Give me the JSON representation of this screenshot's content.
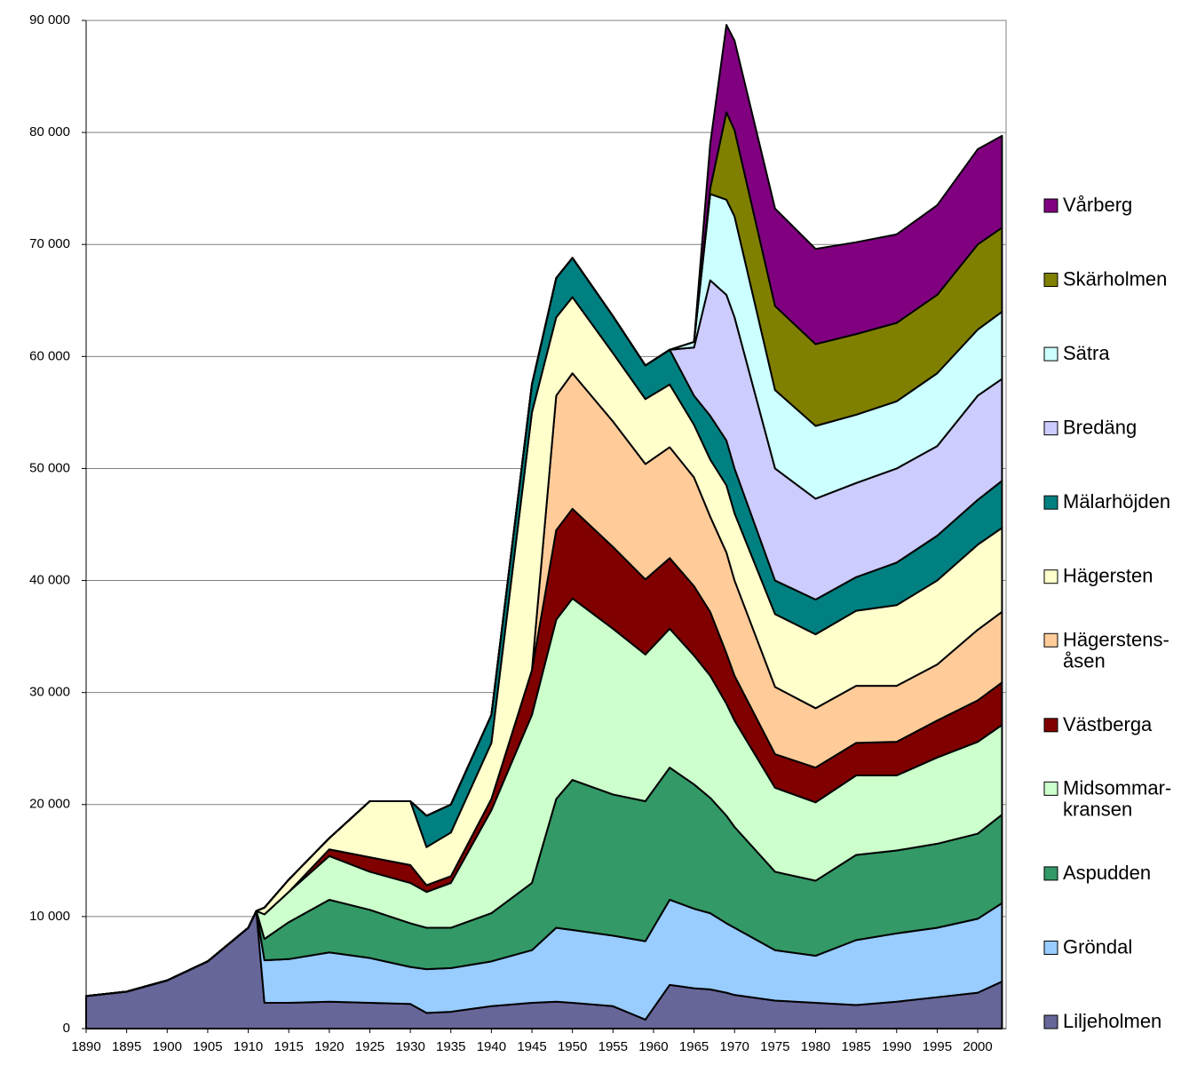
{
  "chart_data": {
    "type": "stacked_area",
    "x": [
      1890,
      1895,
      1900,
      1905,
      1910,
      1911,
      1912,
      1915,
      1920,
      1925,
      1930,
      1932,
      1935,
      1940,
      1945,
      1948,
      1950,
      1955,
      1959,
      1962,
      1965,
      1967,
      1969,
      1970,
      1975,
      1980,
      1985,
      1990,
      1995,
      2000,
      2003
    ],
    "xlim": [
      1890,
      2003.5
    ],
    "xticks": [
      1890,
      1895,
      1900,
      1905,
      1910,
      1915,
      1920,
      1925,
      1930,
      1935,
      1940,
      1945,
      1950,
      1955,
      1960,
      1965,
      1970,
      1975,
      1980,
      1985,
      1990,
      1995,
      2000
    ],
    "ylim": [
      0,
      90000
    ],
    "yticks": [
      0,
      {
        "value": 10000,
        "label": "10 000"
      },
      {
        "value": 20000,
        "label": "20 000"
      },
      {
        "value": 30000,
        "label": "30 000"
      },
      {
        "value": 40000,
        "label": "40 000"
      },
      {
        "value": 50000,
        "label": "50 000"
      },
      {
        "value": 60000,
        "label": "60 000"
      },
      {
        "value": 70000,
        "label": "70 000"
      },
      {
        "value": 80000,
        "label": "80 000"
      },
      {
        "value": 90000,
        "label": "90 000"
      }
    ],
    "grid": true,
    "legend": "right",
    "series": [
      {
        "name": "Liljeholmen",
        "color": "#666699",
        "values": [
          2900,
          3300,
          4300,
          6000,
          9000,
          10500,
          2300,
          2300,
          2400,
          2300,
          2200,
          1400,
          1500,
          2000,
          2300,
          2400,
          2300,
          2000,
          800,
          3900,
          3600,
          3500,
          3200,
          3000,
          2500,
          2300,
          2100,
          2400,
          2800,
          3200,
          4200
        ]
      },
      {
        "name": "Gröndal",
        "color": "#99ccff",
        "values": [
          0,
          0,
          0,
          0,
          0,
          0,
          3800,
          3900,
          4400,
          4000,
          3300,
          3900,
          3900,
          4000,
          4700,
          6600,
          6500,
          6300,
          7000,
          7600,
          7100,
          6800,
          6200,
          6000,
          4500,
          4200,
          5800,
          6100,
          6200,
          6600,
          7000
        ]
      },
      {
        "name": "Aspudden",
        "color": "#339966",
        "values": [
          0,
          0,
          0,
          0,
          0,
          0,
          1900,
          3300,
          4700,
          4300,
          3900,
          3700,
          3600,
          4300,
          6000,
          11500,
          13400,
          12600,
          12500,
          11800,
          11100,
          10300,
          9600,
          9000,
          7000,
          6700,
          7600,
          7400,
          7500,
          7600,
          7900
        ]
      },
      {
        "name": "Midsommar-\nkransen",
        "color": "#ccffcc",
        "values": [
          0,
          0,
          0,
          0,
          0,
          0,
          2200,
          2700,
          3900,
          3400,
          3600,
          3200,
          4000,
          9200,
          15000,
          16000,
          16200,
          14800,
          13100,
          12400,
          11500,
          10900,
          10000,
          9500,
          7500,
          7000,
          7100,
          6700,
          7700,
          8200,
          8000
        ]
      },
      {
        "name": "Västberga",
        "color": "#800000",
        "values": [
          0,
          0,
          0,
          0,
          0,
          0,
          0,
          0,
          600,
          1300,
          1600,
          600,
          600,
          1000,
          4000,
          8000,
          8000,
          7300,
          6700,
          6300,
          6200,
          5700,
          4500,
          4000,
          3000,
          3100,
          2900,
          3000,
          3300,
          3700,
          3800
        ]
      },
      {
        "name": "Hägerstens-\nåsen",
        "color": "#ffcc99",
        "values": [
          0,
          0,
          0,
          0,
          0,
          0,
          0,
          0,
          0,
          0,
          0,
          0,
          0,
          0,
          0,
          12000,
          12100,
          11200,
          10300,
          9900,
          9700,
          8500,
          9000,
          8500,
          6000,
          5300,
          5100,
          5000,
          5000,
          6300,
          6300
        ]
      },
      {
        "name": "Hägersten",
        "color": "#ffffcc",
        "values": [
          0,
          0,
          0,
          0,
          0,
          0,
          600,
          1100,
          1000,
          5000,
          5700,
          3400,
          3900,
          5000,
          23000,
          7000,
          6800,
          6100,
          5800,
          5600,
          4700,
          5100,
          6000,
          6000,
          6500,
          6600,
          6700,
          7200,
          7500,
          7600,
          7500
        ]
      },
      {
        "name": "Mälarhöjden",
        "color": "#008080",
        "values": [
          0,
          0,
          0,
          0,
          0,
          0,
          0,
          0,
          0,
          0,
          0,
          2800,
          2500,
          2500,
          2500,
          3500,
          3500,
          3300,
          3000,
          3100,
          2600,
          3900,
          4000,
          4000,
          3000,
          3100,
          3000,
          3800,
          4000,
          4000,
          4200
        ]
      },
      {
        "name": "Bredäng",
        "color": "#ccccff",
        "values": [
          0,
          0,
          0,
          0,
          0,
          0,
          0,
          0,
          0,
          0,
          0,
          0,
          0,
          0,
          0,
          0,
          0,
          0,
          0,
          0,
          4300,
          12100,
          13000,
          13500,
          10000,
          9000,
          8400,
          8400,
          8000,
          9300,
          9100
        ]
      },
      {
        "name": "Sätra",
        "color": "#ccffff",
        "values": [
          0,
          0,
          0,
          0,
          0,
          0,
          0,
          0,
          0,
          0,
          0,
          0,
          0,
          0,
          0,
          0,
          0,
          0,
          0,
          0,
          500,
          7700,
          8500,
          9000,
          7000,
          6500,
          6100,
          6000,
          6500,
          5900,
          6000
        ]
      },
      {
        "name": "Skärholmen",
        "color": "#808000",
        "values": [
          0,
          0,
          0,
          0,
          0,
          0,
          0,
          0,
          0,
          0,
          0,
          0,
          0,
          0,
          0,
          0,
          0,
          0,
          0,
          0,
          0,
          500,
          7800,
          7700,
          7500,
          7300,
          7200,
          7000,
          7000,
          7600,
          7500
        ]
      },
      {
        "name": "Vårberg",
        "color": "#800080",
        "values": [
          0,
          0,
          0,
          0,
          0,
          0,
          0,
          0,
          0,
          0,
          0,
          0,
          0,
          0,
          0,
          0,
          0,
          0,
          0,
          0,
          0,
          4000,
          7800,
          8000,
          8700,
          8500,
          8200,
          7900,
          8000,
          8500,
          8200
        ]
      }
    ]
  }
}
